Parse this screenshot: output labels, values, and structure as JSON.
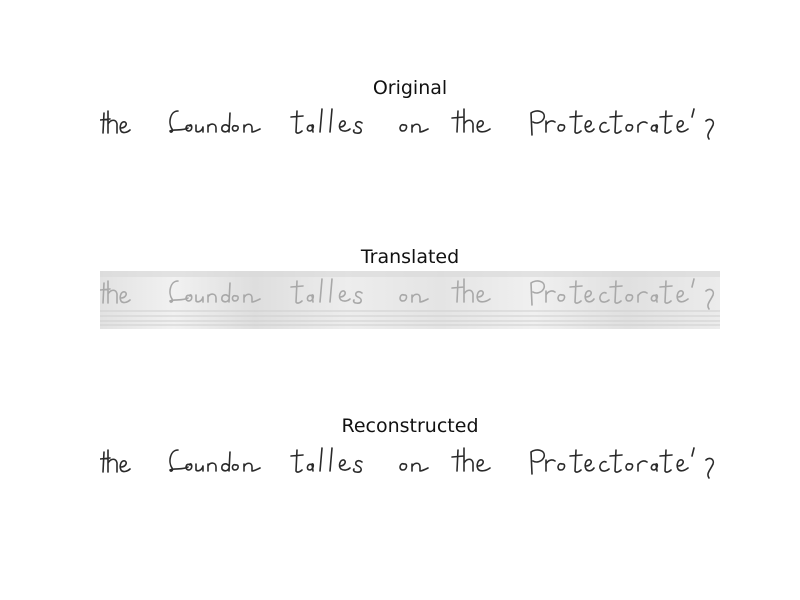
{
  "panels": [
    {
      "title": "Original"
    },
    {
      "title": "Translated"
    },
    {
      "title": "Reconstructed"
    }
  ],
  "handwriting_text": "the London talks on the Protectorate's",
  "colors": {
    "ink": "#2a2a2a",
    "faded_ink": "#a8a8a8",
    "noise_background": "#e6e6e6"
  }
}
